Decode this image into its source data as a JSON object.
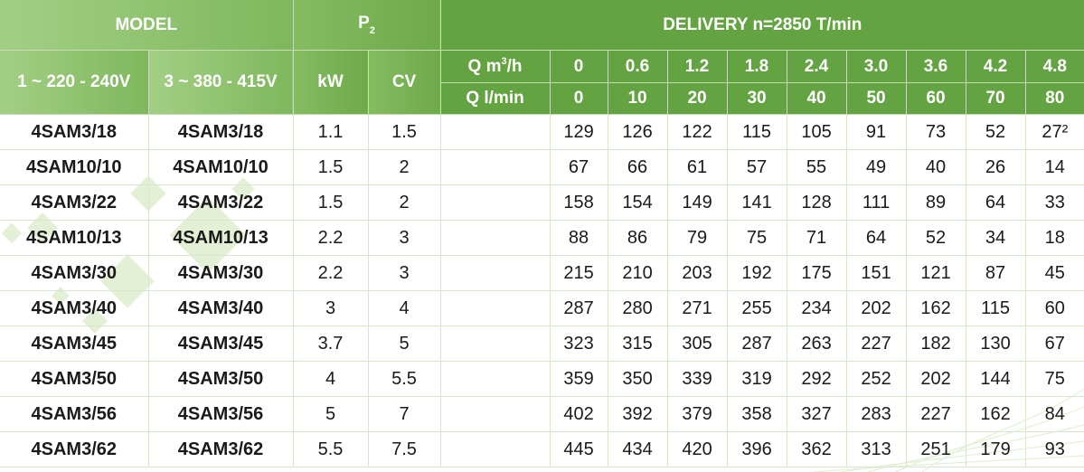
{
  "header": {
    "model": "MODEL",
    "p2": "P",
    "p2_sub": "2",
    "delivery": "DELIVERY n=2850 T/min",
    "v1": "1 ~ 220 - 240V",
    "v3": "3 ~ 380 - 415V",
    "kw": "kW",
    "cv": "CV",
    "q_m3h_prefix": "Q m",
    "q_m3h_sup": "3",
    "q_m3h_suffix": "/h",
    "q_lmin": "Q l/min",
    "flow_m3h": [
      "0",
      "0.6",
      "1.2",
      "1.8",
      "2.4",
      "3.0",
      "3.6",
      "4.2",
      "4.8"
    ],
    "flow_lmin": [
      "0",
      "10",
      "20",
      "30",
      "40",
      "50",
      "60",
      "70",
      "80"
    ]
  },
  "rows": [
    {
      "m1": "4SAM3/18",
      "m3": "4SAM3/18",
      "kw": "1.1",
      "cv": "1.5",
      "h": [
        "129",
        "126",
        "122",
        "115",
        "105",
        "91",
        "73",
        "52",
        "27²"
      ]
    },
    {
      "m1": "4SAM10/10",
      "m3": "4SAM10/10",
      "kw": "1.5",
      "cv": "2",
      "h": [
        "67",
        "66",
        "61",
        "57",
        "55",
        "49",
        "40",
        "26",
        "14"
      ]
    },
    {
      "m1": "4SAM3/22",
      "m3": "4SAM3/22",
      "kw": "1.5",
      "cv": "2",
      "h": [
        "158",
        "154",
        "149",
        "141",
        "128",
        "111",
        "89",
        "64",
        "33"
      ]
    },
    {
      "m1": "4SAM10/13",
      "m3": "4SAM10/13",
      "kw": "2.2",
      "cv": "3",
      "h": [
        "88",
        "86",
        "79",
        "75",
        "71",
        "64",
        "52",
        "34",
        "18"
      ]
    },
    {
      "m1": "4SAM3/30",
      "m3": "4SAM3/30",
      "kw": "2.2",
      "cv": "3",
      "h": [
        "215",
        "210",
        "203",
        "192",
        "175",
        "151",
        "121",
        "87",
        "45"
      ]
    },
    {
      "m1": "4SAM3/40",
      "m3": "4SAM3/40",
      "kw": "3",
      "cv": "4",
      "h": [
        "287",
        "280",
        "271",
        "255",
        "234",
        "202",
        "162",
        "115",
        "60"
      ]
    },
    {
      "m1": "4SAM3/45",
      "m3": "4SAM3/45",
      "kw": "3.7",
      "cv": "5",
      "h": [
        "323",
        "315",
        "305",
        "287",
        "263",
        "227",
        "182",
        "130",
        "67"
      ]
    },
    {
      "m1": "4SAM3/50",
      "m3": "4SAM3/50",
      "kw": "4",
      "cv": "5.5",
      "h": [
        "359",
        "350",
        "339",
        "319",
        "292",
        "252",
        "202",
        "144",
        "75"
      ]
    },
    {
      "m1": "4SAM3/56",
      "m3": "4SAM3/56",
      "kw": "5",
      "cv": "7",
      "h": [
        "402",
        "392",
        "379",
        "358",
        "327",
        "283",
        "227",
        "162",
        "84"
      ]
    },
    {
      "m1": "4SAM3/62",
      "m3": "4SAM3/62",
      "kw": "5.5",
      "cv": "7.5",
      "h": [
        "445",
        "434",
        "420",
        "396",
        "362",
        "313",
        "251",
        "179",
        "93"
      ]
    }
  ],
  "colors": {
    "header_green": "#64a342",
    "header_light_green": "#a3cf85",
    "decor_green": "#d7e9c4"
  }
}
